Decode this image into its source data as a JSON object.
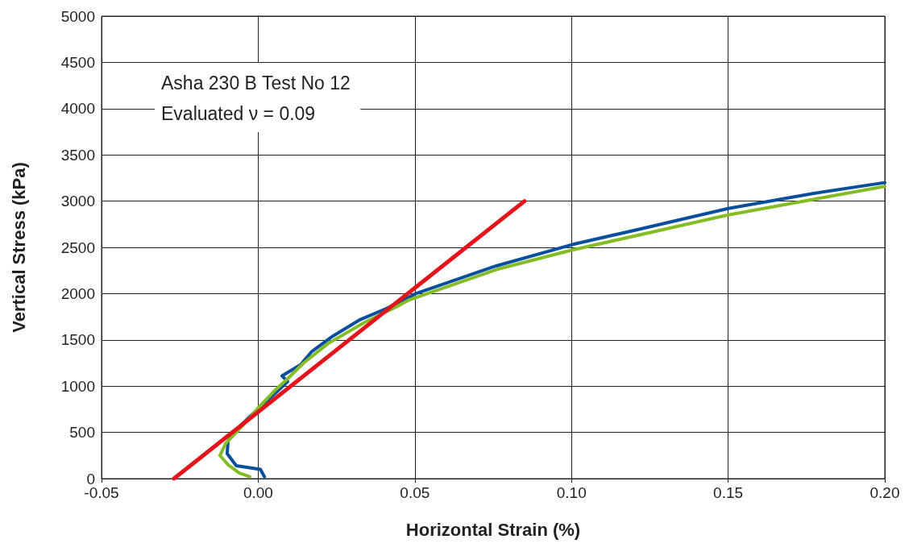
{
  "chart_data": {
    "type": "line",
    "xlabel": "Horizontal Strain (%)",
    "ylabel": "Vertical Stress (kPa)",
    "annotations": [
      "Asha 230 B Test No 12",
      "Evaluated ν = 0.09"
    ],
    "xlim": [
      -0.05,
      0.2
    ],
    "xticks": [
      {
        "value": -0.05,
        "label": "-0.05"
      },
      {
        "value": 0,
        "label": "0.00"
      },
      {
        "value": 0.05,
        "label": "0.05"
      },
      {
        "value": 0.1,
        "label": "0.10"
      },
      {
        "value": 0.15,
        "label": "0.15"
      },
      {
        "value": 0.2,
        "label": "0.20"
      }
    ],
    "ylim": [
      0,
      5000
    ],
    "yticks": [
      0,
      500,
      1000,
      1500,
      2000,
      2500,
      3000,
      3500,
      4000,
      4500,
      5000
    ],
    "grid": true,
    "marker": "none",
    "line_style": "solid",
    "series": [
      {
        "color": "#0a4f9e",
        "x": [
          0.002,
          0.0007,
          -0.007,
          -0.0099,
          -0.0096,
          -0.006,
          -0.0027,
          0.0032,
          0.0094,
          0.0076,
          0.0135,
          0.017,
          0.0238,
          0.0326,
          0.041,
          0.0503,
          0.076,
          0.1002,
          0.1208,
          0.15,
          0.1766,
          0.2
        ],
        "values": [
          20,
          100,
          140,
          270,
          410,
          560,
          670,
          850,
          1050,
          1110,
          1230,
          1370,
          1540,
          1720,
          1840,
          2000,
          2300,
          2530,
          2690,
          2920,
          3080,
          3200
        ]
      },
      {
        "color": "#84bc26",
        "x": [
          -0.0027,
          -0.006,
          -0.0096,
          -0.0122,
          -0.0104,
          -0.0053,
          -0.0001,
          0.0058,
          0.0094,
          0.0145,
          0.0223,
          0.034,
          0.0443,
          0.048,
          0.076,
          0.1,
          0.15,
          0.2
        ],
        "values": [
          20,
          60,
          150,
          250,
          380,
          560,
          760,
          970,
          1080,
          1250,
          1460,
          1690,
          1860,
          1930,
          2260,
          2470,
          2850,
          3160
        ]
      },
      {
        "color": "#e3141b",
        "x": [
          -0.0269,
          0.085
        ],
        "values": [
          0,
          3000
        ]
      }
    ]
  }
}
